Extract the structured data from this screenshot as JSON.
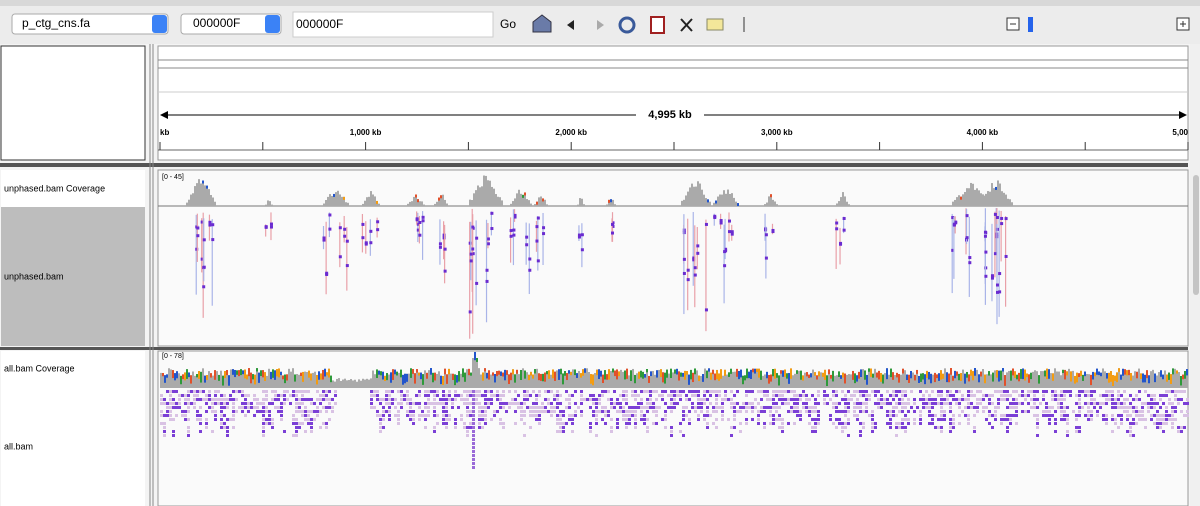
{
  "toolbar": {
    "genome": "p_ctg_cns.fa",
    "chromosome": "000000F",
    "locus": "000000F",
    "go": "Go"
  },
  "ruler": {
    "span": "4,995 kb",
    "ticks": [
      "kb",
      "1,000 kb",
      "2,000 kb",
      "3,000 kb",
      "4,000 kb",
      "5,00"
    ]
  },
  "tracks": [
    {
      "name": "unphased.bam Coverage",
      "range": "[0 - 45]"
    },
    {
      "name": "unphased.bam"
    },
    {
      "name": "all.bam Coverage",
      "range": "[0 - 78]"
    },
    {
      "name": "all.bam"
    }
  ]
}
